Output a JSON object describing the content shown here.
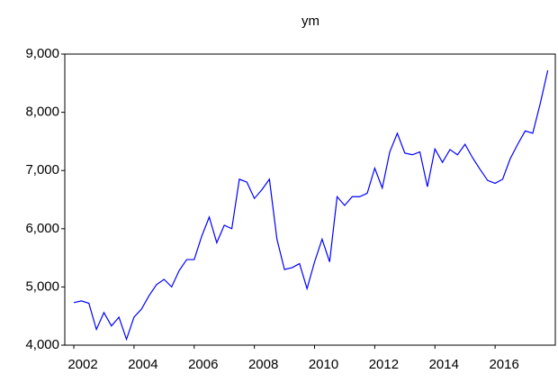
{
  "chart_data": {
    "type": "line",
    "title": "ym",
    "x": [
      2002,
      2002.25,
      2002.5,
      2002.75,
      2003,
      2003.25,
      2003.5,
      2003.75,
      2004,
      2004.25,
      2004.5,
      2004.75,
      2005,
      2005.25,
      2005.5,
      2005.75,
      2006,
      2006.25,
      2006.5,
      2006.75,
      2007,
      2007.25,
      2007.5,
      2007.75,
      2008,
      2008.25,
      2008.5,
      2008.75,
      2009,
      2009.25,
      2009.5,
      2009.75,
      2010,
      2010.25,
      2010.5,
      2010.75,
      2011,
      2011.25,
      2011.5,
      2011.75,
      2012,
      2012.25,
      2012.5,
      2012.75,
      2013,
      2013.25,
      2013.5,
      2013.75,
      2014,
      2014.25,
      2014.5,
      2014.75,
      2015,
      2015.25,
      2015.5,
      2015.75,
      2016,
      2016.25,
      2016.5,
      2016.75,
      2017,
      2017.25,
      2017.5,
      2017.75
    ],
    "series": [
      {
        "name": "ym",
        "color": "#0000ff",
        "values": [
          4730,
          4760,
          4720,
          4270,
          4560,
          4330,
          4480,
          4100,
          4480,
          4620,
          4850,
          5040,
          5130,
          5000,
          5280,
          5470,
          5470,
          5870,
          6200,
          5760,
          6060,
          6000,
          6850,
          6800,
          6520,
          6670,
          6850,
          5820,
          5300,
          5330,
          5400,
          4970,
          5430,
          5820,
          5430,
          6550,
          6400,
          6550,
          6550,
          6610,
          7040,
          6700,
          7320,
          7640,
          7300,
          7270,
          7320,
          6720,
          7370,
          7140,
          7360,
          7270,
          7450,
          7220,
          7020,
          6830,
          6780,
          6850,
          7200,
          7450,
          7680,
          7640,
          8150,
          8720
        ]
      }
    ],
    "xlim": [
      2001.7,
      2018.0
    ],
    "xticks": [
      2002,
      2004,
      2006,
      2008,
      2010,
      2012,
      2014,
      2016
    ],
    "ylim": [
      4000,
      9000
    ],
    "yticks": [
      {
        "value": 4000,
        "label": "4,000"
      },
      {
        "value": 5000,
        "label": "5,000"
      },
      {
        "value": 6000,
        "label": "6,000"
      },
      {
        "value": 7000,
        "label": "7,000"
      },
      {
        "value": 8000,
        "label": "8,000"
      },
      {
        "value": 9000,
        "label": "9,000"
      }
    ],
    "grid": false
  }
}
